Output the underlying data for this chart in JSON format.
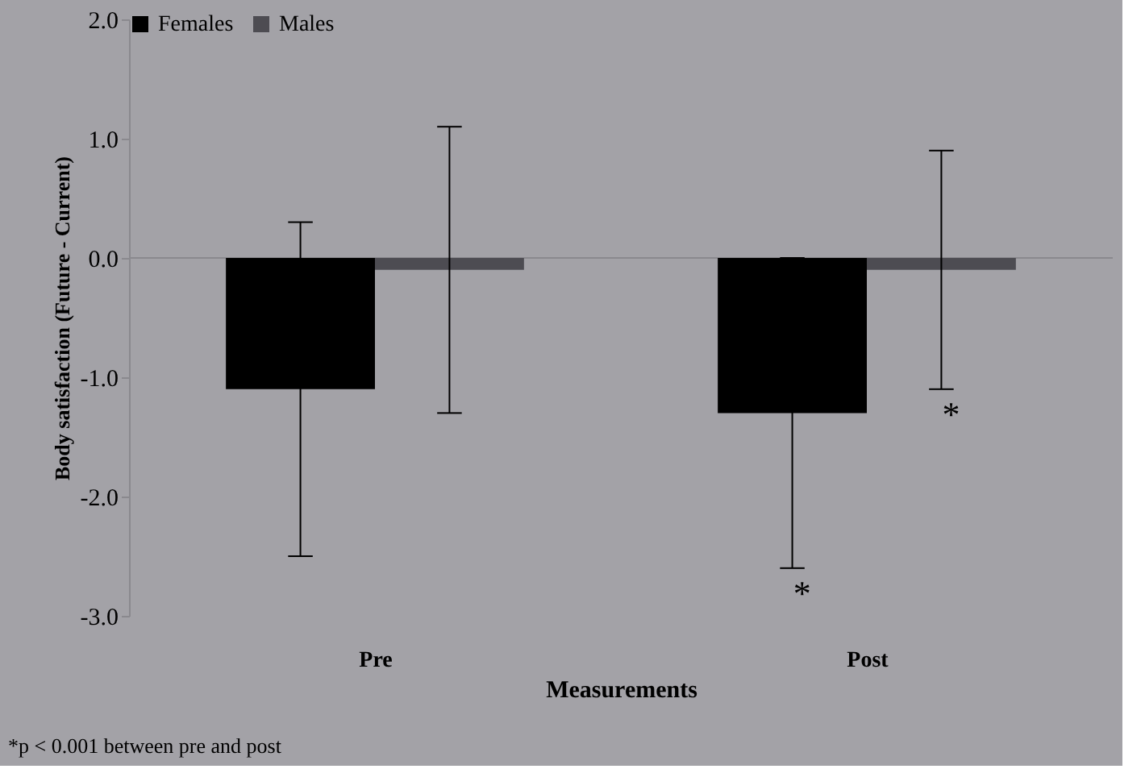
{
  "chart_data": {
    "type": "bar",
    "categories": [
      "Pre",
      "Post"
    ],
    "xlabel": "Measurements",
    "ylabel": "Body satisfaction (Future - Current)",
    "series": [
      {
        "name": "Females",
        "color": "#000000",
        "values": [
          -1.1,
          -1.3
        ],
        "errors": [
          [
            -2.5,
            0.3
          ],
          [
            -2.6,
            0.0
          ]
        ]
      },
      {
        "name": "Males",
        "color": "#4d4c52",
        "values": [
          -0.1,
          -0.1
        ],
        "errors": [
          [
            -1.3,
            1.1
          ],
          [
            -1.1,
            0.9
          ]
        ]
      }
    ],
    "ylim": [
      -3,
      2
    ],
    "yticks": [
      {
        "value": -3,
        "label": "-3.0"
      },
      {
        "value": -2,
        "label": "-2.0"
      },
      {
        "value": -1,
        "label": "-1.0"
      },
      {
        "value": 0,
        "label": "0.0"
      },
      {
        "value": 1,
        "label": "1.0"
      },
      {
        "value": 2,
        "label": "2.0"
      }
    ],
    "legend": "top",
    "grid": false,
    "ref_lines": [
      {
        "axis": "y",
        "value": 0,
        "color": "#8a898e"
      }
    ],
    "annotations": [
      "*",
      "*",
      "*p < 0.001 between pre and post"
    ]
  }
}
